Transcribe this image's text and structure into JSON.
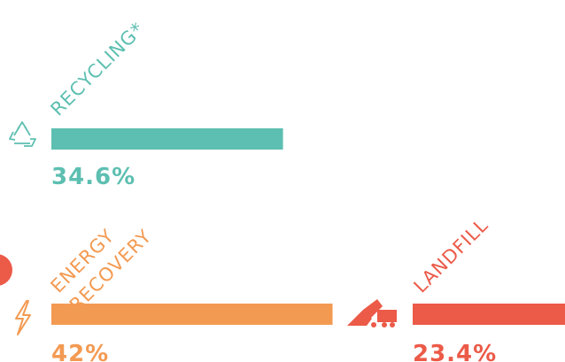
{
  "chart_data": {
    "type": "bar",
    "categories": [
      "RECYCLING*",
      "ENERGY RECOVERY",
      "LANDFILL"
    ],
    "values": [
      34.6,
      42,
      23.4
    ],
    "value_labels": [
      "34.6%",
      "42%",
      "23.4%"
    ],
    "colors": [
      "#5dbfb1",
      "#f39a52",
      "#ec5a48"
    ]
  }
}
